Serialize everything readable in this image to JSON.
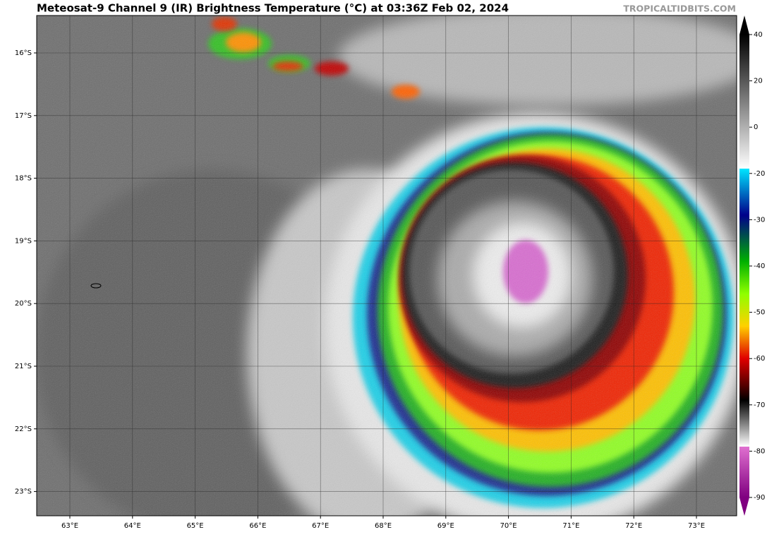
{
  "title": "Meteosat-9 Channel 9 (IR) Brightness Temperature (°C) at 03:36Z Feb 02, 2024",
  "credit": "TROPICALTIDBITS.COM",
  "longitudes": [
    "63°E",
    "64°E",
    "65°E",
    "66°E",
    "67°E",
    "68°E",
    "69°E",
    "70°E",
    "71°E",
    "72°E",
    "73°E"
  ],
  "latitudes": [
    "16°S",
    "17°S",
    "18°S",
    "19°S",
    "20°S",
    "21°S",
    "22°S",
    "23°S"
  ],
  "colorbar": {
    "ticks": [
      40,
      20,
      0,
      -20,
      -30,
      -40,
      -50,
      -60,
      -70,
      -80,
      -90
    ]
  }
}
